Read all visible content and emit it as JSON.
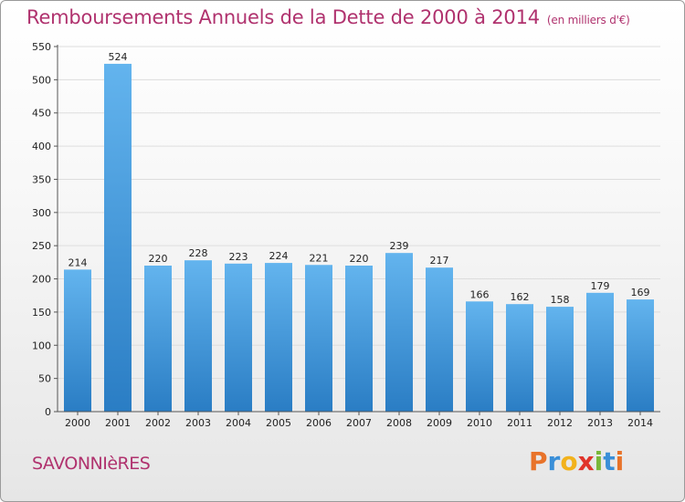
{
  "title": "Remboursements Annuels de la Dette de 2000 à 2014",
  "subtitle": "(en milliers d'€)",
  "commune": "SAVONNIèRES",
  "brand": {
    "letters": [
      "P",
      "r",
      "o",
      "x",
      "i",
      "t",
      "i"
    ],
    "colors": [
      "#e8732a",
      "#3a8fd8",
      "#f2b21c",
      "#e0342b",
      "#7ab73a",
      "#3a8fd8",
      "#e8732a"
    ]
  },
  "colors": {
    "bar_top": "#63b4ee",
    "bar_bottom": "#2a7dc4",
    "axis": "#555555",
    "grid": "#dddddd"
  },
  "chart_data": {
    "type": "bar",
    "categories": [
      "2000",
      "2001",
      "2002",
      "2003",
      "2004",
      "2005",
      "2006",
      "2007",
      "2008",
      "2009",
      "2010",
      "2011",
      "2012",
      "2013",
      "2014"
    ],
    "values": [
      214,
      524,
      220,
      228,
      223,
      224,
      221,
      220,
      239,
      217,
      166,
      162,
      158,
      179,
      169
    ],
    "ylim": [
      0,
      550
    ],
    "yticks": [
      0,
      50,
      100,
      150,
      200,
      250,
      300,
      350,
      400,
      450,
      500,
      550
    ],
    "title": "Remboursements Annuels de la Dette de 2000 à 2014",
    "xlabel": "",
    "ylabel": "",
    "grid": true,
    "legend": "none"
  }
}
